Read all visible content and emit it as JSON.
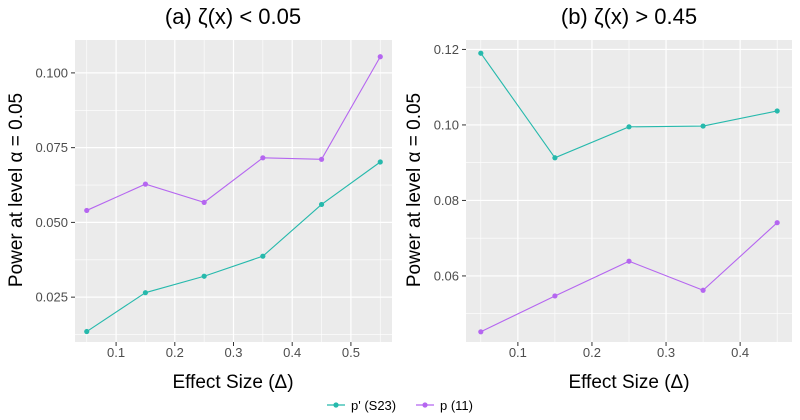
{
  "colors": {
    "teal": "#26b9ac",
    "purple": "#b566f0",
    "panel_bg": "#ebebeb",
    "grid": "#ffffff"
  },
  "legend": {
    "teal_label": "p' (S23)",
    "purple_label": "p (11)",
    "placement": "bottom"
  },
  "chart_data": [
    {
      "type": "line",
      "title": "(a) ζ(x)  < 0.05",
      "xlabel": "Effect Size (Δ)",
      "ylabel": "Power at level α = 0.05",
      "xlim": [
        0.03,
        0.57
      ],
      "ylim": [
        0.01,
        0.111
      ],
      "x": [
        0.05,
        0.15,
        0.25,
        0.35,
        0.45,
        0.55
      ],
      "x_ticks": [
        0.1,
        0.2,
        0.3,
        0.4,
        0.5
      ],
      "x_tick_labels": [
        "0.1",
        "0.2",
        "0.3",
        "0.4",
        "0.5"
      ],
      "y_ticks": [
        0.025,
        0.05,
        0.075,
        0.1
      ],
      "y_tick_labels": [
        "0.025",
        "0.050",
        "0.075",
        "0.100"
      ],
      "grid": true,
      "series": [
        {
          "name": "p' (S23)",
          "color": "#26b9ac",
          "values": [
            0.0135,
            0.0265,
            0.032,
            0.0387,
            0.056,
            0.0702
          ]
        },
        {
          "name": "p (11)",
          "color": "#b566f0",
          "values": [
            0.054,
            0.0628,
            0.0567,
            0.0716,
            0.0711,
            0.1054
          ]
        }
      ]
    },
    {
      "type": "line",
      "title": "(b) ζ(x)  > 0.45",
      "xlabel": "Effect Size (Δ)",
      "ylabel": "Power at level α = 0.05",
      "xlim": [
        0.03,
        0.47
      ],
      "ylim": [
        0.0425,
        0.1225
      ],
      "x": [
        0.05,
        0.15,
        0.25,
        0.35,
        0.45
      ],
      "x_ticks": [
        0.1,
        0.2,
        0.3,
        0.4
      ],
      "x_tick_labels": [
        "0.1",
        "0.2",
        "0.3",
        "0.4"
      ],
      "y_ticks": [
        0.06,
        0.08,
        0.1,
        0.12
      ],
      "y_tick_labels": [
        "0.06",
        "0.08",
        "0.10",
        "0.12"
      ],
      "grid": true,
      "series": [
        {
          "name": "p' (S23)",
          "color": "#26b9ac",
          "values": [
            0.119,
            0.0913,
            0.0995,
            0.0997,
            0.1037
          ]
        },
        {
          "name": "p (11)",
          "color": "#b566f0",
          "values": [
            0.0452,
            0.0547,
            0.0639,
            0.0562,
            0.0741
          ]
        }
      ]
    }
  ]
}
